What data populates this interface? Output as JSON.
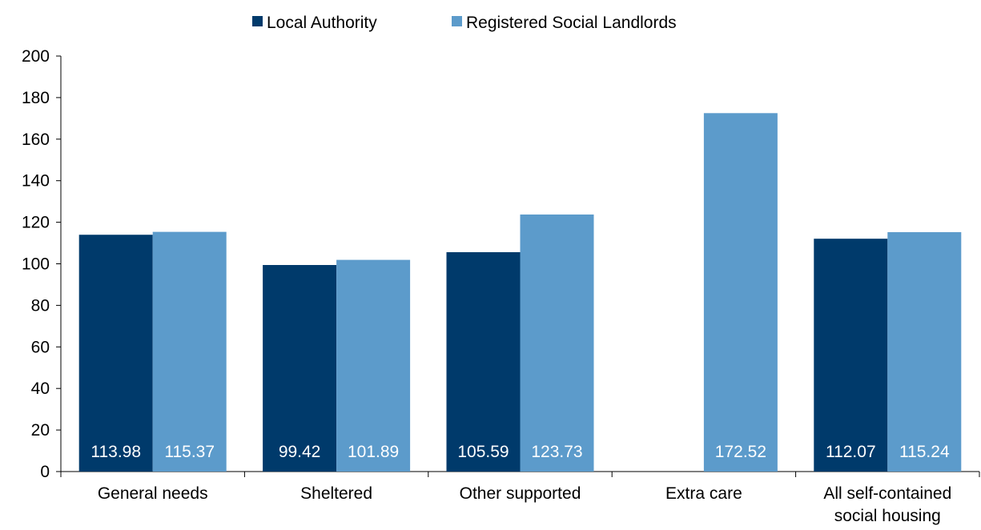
{
  "chart_data": {
    "type": "bar",
    "title": "",
    "xlabel": "",
    "ylabel": "",
    "ylim": [
      0,
      200
    ],
    "yticks": [
      "0",
      "20",
      "40",
      "60",
      "80",
      "100",
      "120",
      "140",
      "160",
      "180",
      "200"
    ],
    "grid": false,
    "legend_position": "top",
    "categories": [
      [
        "General needs"
      ],
      [
        "Sheltered"
      ],
      [
        "Other supported"
      ],
      [
        "Extra care"
      ],
      [
        "All self-contained",
        "social housing"
      ]
    ],
    "series": [
      {
        "name": "Local Authority",
        "color": "#003A6B",
        "values": [
          113.98,
          99.42,
          105.59,
          null,
          112.07
        ],
        "labels": [
          "113.98",
          "99.42",
          "105.59",
          "",
          "112.07"
        ]
      },
      {
        "name": "Registered Social Landlords",
        "color": "#5C9BCB",
        "values": [
          115.37,
          101.89,
          123.73,
          172.52,
          115.24
        ],
        "labels": [
          "115.37",
          "101.89",
          "123.73",
          "172.52",
          "115.24"
        ]
      }
    ],
    "data_label_color": "#ffffff",
    "axis_color": "#000000"
  }
}
